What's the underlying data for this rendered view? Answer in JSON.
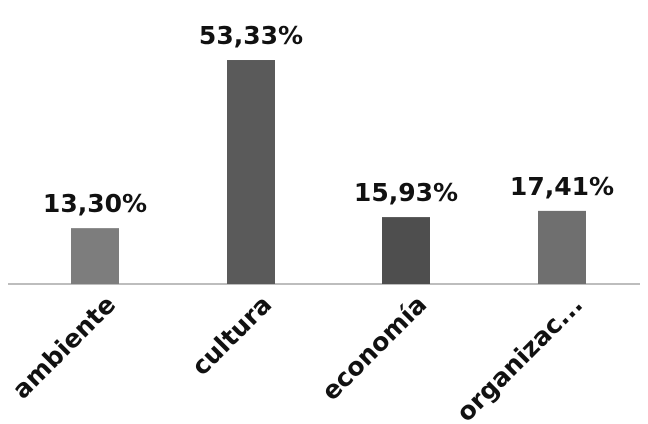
{
  "chart_data": {
    "type": "bar",
    "categories": [
      "ambiente",
      "cultura",
      "economía",
      "organizac..."
    ],
    "values": [
      13.3,
      53.33,
      15.93,
      17.41
    ],
    "data_labels": [
      "13,30%",
      "53,33%",
      "15,93%",
      "17,41%"
    ],
    "bar_colors": [
      "#7d7d7d",
      "#5a5a5a",
      "#4e4e4e",
      "#6f6f6f"
    ],
    "title": "",
    "xlabel": "",
    "ylabel": "",
    "ylim": [
      0,
      60
    ],
    "grid": false,
    "legend": "none"
  }
}
